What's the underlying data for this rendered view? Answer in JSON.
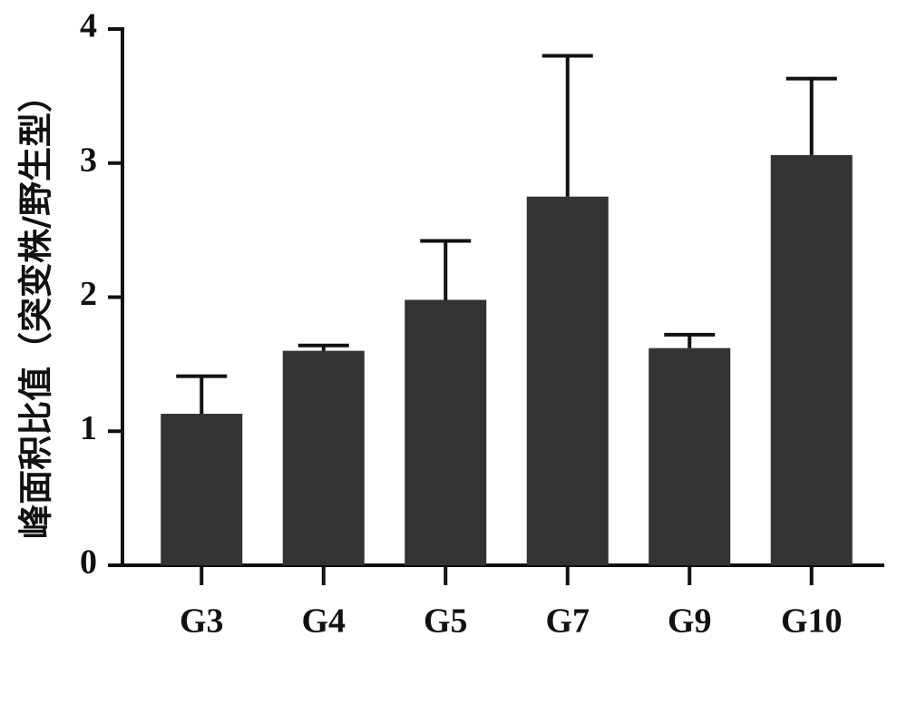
{
  "chart_data": {
    "type": "bar",
    "y_label": "峰面积比值（突变株/野生型）",
    "categories": [
      "G3",
      "G4",
      "G5",
      "G7",
      "G9",
      "G10"
    ],
    "values": [
      1.13,
      1.6,
      1.98,
      2.75,
      1.62,
      3.06
    ],
    "errors": [
      0.28,
      0.04,
      0.44,
      1.05,
      0.1,
      0.57
    ],
    "color": "#333333",
    "ylim": [
      0,
      4
    ],
    "yticks": [
      0,
      1,
      2,
      3,
      4
    ],
    "grid": false
  }
}
